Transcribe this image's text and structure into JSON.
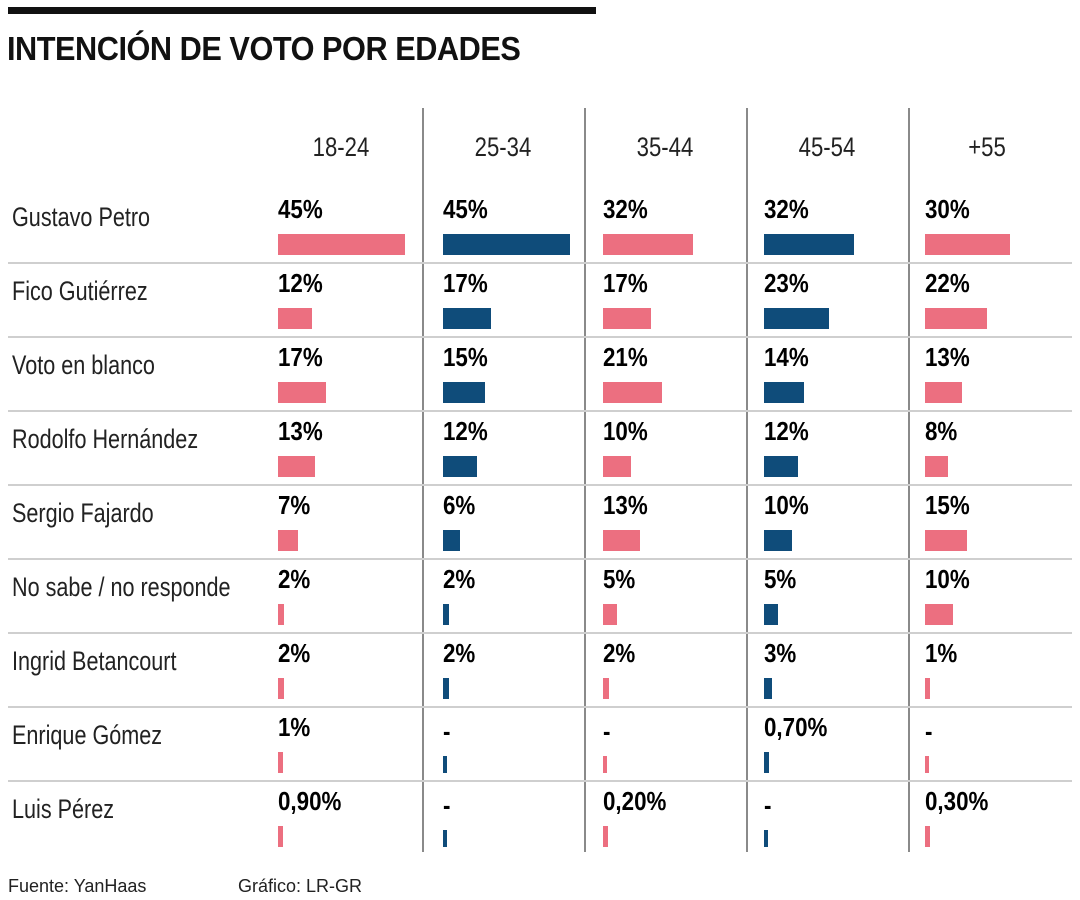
{
  "title": "INTENCIÓN DE VOTO POR EDADES",
  "colors": {
    "pink": "#ec6f80",
    "blue": "#0f4c7a",
    "divider": "#8a8a8a",
    "rowline": "#cfcfcf"
  },
  "footer": {
    "source": "Fuente: YanHaas",
    "credit": "Gráfico: LR-GR"
  },
  "chart_data": {
    "type": "table",
    "title": "INTENCIÓN DE VOTO POR EDADES",
    "categories": [
      "18-24",
      "25-34",
      "35-44",
      "45-54",
      "+55"
    ],
    "column_colors": [
      "pink",
      "blue",
      "pink",
      "blue",
      "pink"
    ],
    "rows": [
      {
        "name": "Gustavo Petro",
        "labels": [
          "45%",
          "45%",
          "32%",
          "32%",
          "30%"
        ],
        "values": [
          45,
          45,
          32,
          32,
          30
        ]
      },
      {
        "name": "Fico Gutiérrez",
        "labels": [
          "12%",
          "17%",
          "17%",
          "23%",
          "22%"
        ],
        "values": [
          12,
          17,
          17,
          23,
          22
        ]
      },
      {
        "name": "Voto en blanco",
        "labels": [
          "17%",
          "15%",
          "21%",
          "14%",
          "13%"
        ],
        "values": [
          17,
          15,
          21,
          14,
          13
        ]
      },
      {
        "name": "Rodolfo Hernández",
        "labels": [
          "13%",
          "12%",
          "10%",
          "12%",
          "8%"
        ],
        "values": [
          13,
          12,
          10,
          12,
          8
        ]
      },
      {
        "name": "Sergio Fajardo",
        "labels": [
          "7%",
          "6%",
          "13%",
          "10%",
          "15%"
        ],
        "values": [
          7,
          6,
          13,
          10,
          15
        ]
      },
      {
        "name": "No sabe / no responde",
        "labels": [
          "2%",
          "2%",
          "5%",
          "5%",
          "10%"
        ],
        "values": [
          2,
          2,
          5,
          5,
          10
        ]
      },
      {
        "name": "Ingrid Betancourt",
        "labels": [
          "2%",
          "2%",
          "2%",
          "3%",
          "1%"
        ],
        "values": [
          2,
          2,
          2,
          3,
          1
        ]
      },
      {
        "name": "Enrique Gómez",
        "labels": [
          "1%",
          "-",
          "-",
          "0,70%",
          "-"
        ],
        "values": [
          1,
          0,
          0,
          0.7,
          0
        ]
      },
      {
        "name": "Luis Pérez",
        "labels": [
          "0,90%",
          "-",
          "0,20%",
          "-",
          "0,30%"
        ],
        "values": [
          0.9,
          0,
          0.2,
          0,
          0.3
        ]
      }
    ],
    "unit": "%",
    "max_value": 45
  }
}
